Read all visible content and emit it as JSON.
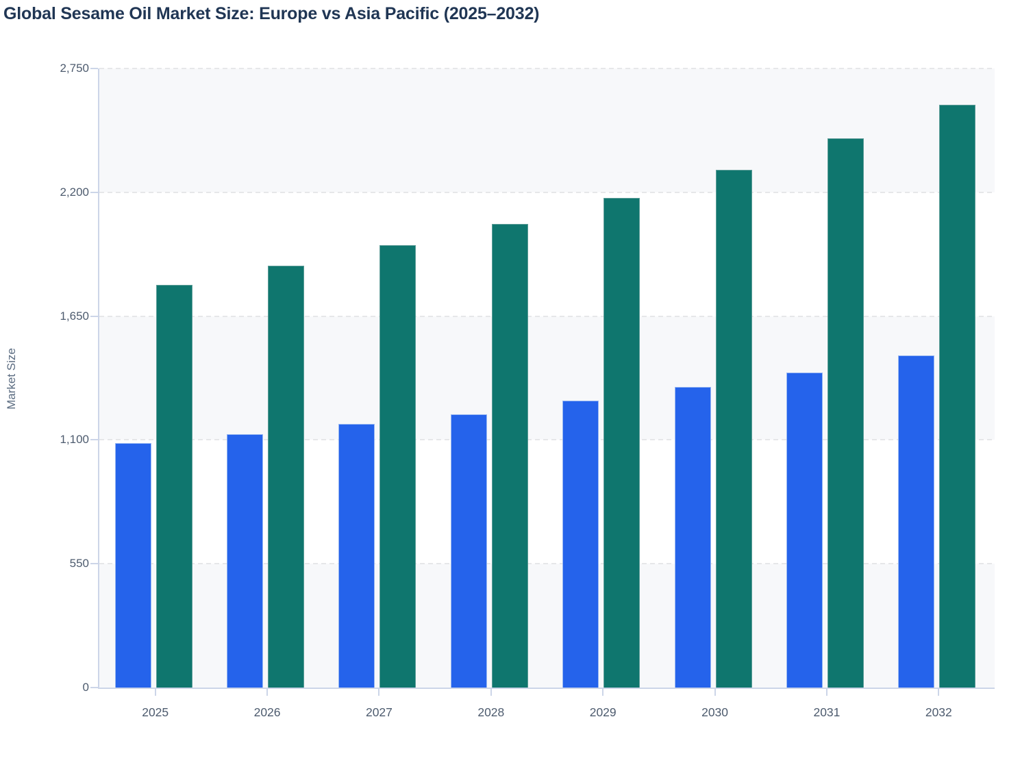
{
  "header": {
    "title": "Global Sesame Oil Market Size: Europe vs Asia Pacific (2025–2032)",
    "title_color": "#203654"
  },
  "chart_data": {
    "type": "bar",
    "title": "Global Sesame Oil Market Size: Europe vs Asia Pacific (2025–2032)",
    "categories": [
      "2025",
      "2026",
      "2027",
      "2028",
      "2029",
      "2030",
      "2031",
      "2032"
    ],
    "series": [
      {
        "name": "Europe",
        "color": "#2563eb",
        "border_color": "#9ab9f2",
        "values": [
          1085,
          1125,
          1170,
          1215,
          1275,
          1335,
          1400,
          1475
        ]
      },
      {
        "name": "Asia Pacific",
        "color": "#0f766e",
        "border_color": "#5f9e99",
        "values": [
          1790,
          1875,
          1965,
          2060,
          2175,
          2300,
          2440,
          2590
        ]
      }
    ],
    "xlabel": "",
    "ylabel": "Market Size",
    "ylim": [
      0,
      2750
    ],
    "yticks": [
      0,
      550,
      1100,
      1650,
      2200,
      2750
    ],
    "ytick_labels": [
      "0",
      "550",
      "1,100",
      "1,650",
      "2,200",
      "2,750"
    ],
    "grid": "horizontal dashed gridlines at each y tick",
    "legend": "none",
    "plot_band_color": "#f7f8fa",
    "plot_band_alt_color": "#ffffff",
    "gridline_color": "#e6e7e9",
    "axis_line_color": "#ccd5e8",
    "tick_label_color": "#4d5b6e",
    "ylabel_color": "#5a6b80"
  }
}
